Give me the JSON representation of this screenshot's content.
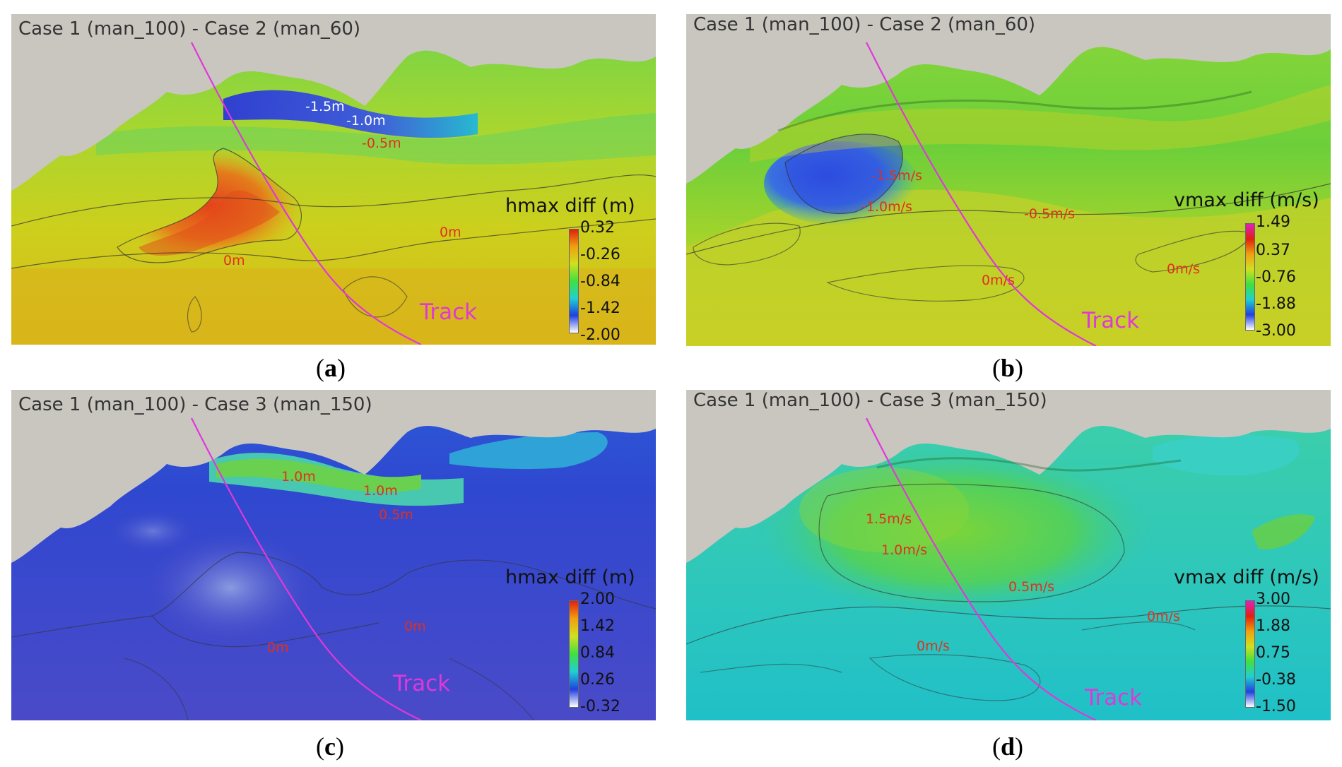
{
  "panels": {
    "a": {
      "title": "Case 1 (man_100) - Case 2 (man_60)",
      "colorbar_title": "hmax diff (m)",
      "ticks": [
        "0.32",
        "-0.26",
        "-0.84",
        "-1.42",
        "-2.00"
      ],
      "contour_labels": [
        "-1.5m",
        "-1.0m",
        "-0.5m",
        "0m",
        "0m"
      ],
      "track_label": "Track",
      "caption_letter": "a"
    },
    "b": {
      "title": "Case 1 (man_100) - Case 2 (man_60)",
      "colorbar_title": "vmax diff (m/s)",
      "ticks": [
        "1.49",
        "0.37",
        "-0.76",
        "-1.88",
        "-3.00"
      ],
      "contour_labels": [
        "-1.5m/s",
        "-1.0m/s",
        "-0.5m/s",
        "0m/s",
        "0m/s"
      ],
      "track_label": "Track",
      "caption_letter": "b"
    },
    "c": {
      "title": "Case 1 (man_100) - Case 3 (man_150)",
      "colorbar_title": "hmax diff (m)",
      "ticks": [
        "2.00",
        "1.42",
        "0.84",
        "0.26",
        "-0.32"
      ],
      "contour_labels": [
        "1.0m",
        "1.0m",
        "0.5m",
        "0m",
        "0m"
      ],
      "track_label": "Track",
      "caption_letter": "c"
    },
    "d": {
      "title": "Case 1 (man_100) - Case 3 (man_150)",
      "colorbar_title": "vmax diff (m/s)",
      "ticks": [
        "3.00",
        "1.88",
        "0.75",
        "-0.38",
        "-1.50"
      ],
      "contour_labels": [
        "1.5m/s",
        "1.0m/s",
        "0.5m/s",
        "0m/s",
        "0m/s"
      ],
      "track_label": "Track",
      "caption_letter": "d"
    }
  },
  "colors": {
    "land": "#c9c6c0",
    "track": "#e038d8",
    "contour_label_red": "#e0301e",
    "contour_label_white": "#ffffff"
  }
}
